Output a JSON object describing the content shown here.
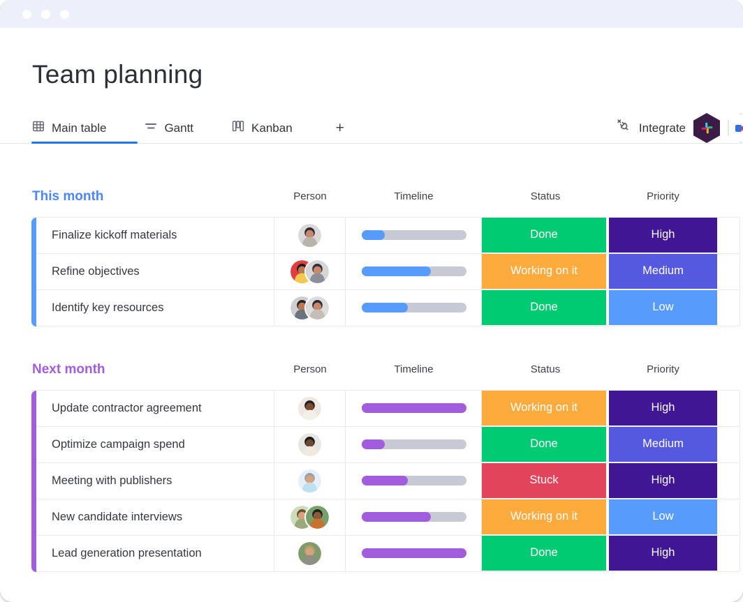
{
  "page": {
    "title": "Team planning"
  },
  "tabs": [
    {
      "label": "Main table",
      "icon": "table-icon",
      "active": true
    },
    {
      "label": "Gantt",
      "icon": "gantt-icon",
      "active": false
    },
    {
      "label": "Kanban",
      "icon": "kanban-icon",
      "active": false
    },
    {
      "label": "+",
      "icon": "plus-icon",
      "active": false
    }
  ],
  "toolbar": {
    "integrate_label": "Integrate",
    "integrate_icon": "plug-icon",
    "app_icons": [
      "slack-icon",
      "partial-app-icon"
    ]
  },
  "columns": [
    "Person",
    "Timeline",
    "Status",
    "Priority"
  ],
  "groups": [
    {
      "name": "This month",
      "title_color": "#4a86f7",
      "color": "#579bfc",
      "rows": [
        {
          "task": "Finalize kickoff materials",
          "timeline_pct": 22,
          "status": "Done",
          "priority": "High",
          "avatars": [
            {
              "bg": "#d9d9d9",
              "hair": "#2f2a33",
              "skin": "#c98a6b",
              "shirt": "#b9b3ad"
            }
          ]
        },
        {
          "task": "Refine objectives",
          "timeline_pct": 66,
          "status": "Working on it",
          "priority": "Medium",
          "avatars": [
            {
              "bg": "#e23e3e",
              "hair": "#1f1b24",
              "skin": "#b97a50",
              "shirt": "#f2c94c"
            },
            {
              "bg": "#d6d6d6",
              "hair": "#33303b",
              "skin": "#c98a6b",
              "shirt": "#8a8f98"
            }
          ]
        },
        {
          "task": "Identify key resources",
          "timeline_pct": 44,
          "status": "Done",
          "priority": "Low",
          "avatars": [
            {
              "bg": "#cfcfcf",
              "hair": "#23212b",
              "skin": "#b97a50",
              "shirt": "#6b7280"
            },
            {
              "bg": "#dcdcdc",
              "hair": "#2f2a33",
              "skin": "#c98a6b",
              "shirt": "#c5beb6"
            }
          ]
        }
      ]
    },
    {
      "name": "Next month",
      "title_color": "#a25ddc",
      "color": "#a25ddc",
      "rows": [
        {
          "task": "Update contractor agreement",
          "timeline_pct": 100,
          "status": "Working on it",
          "priority": "High",
          "avatars": [
            {
              "bg": "#efe7e1",
              "hair": "#241f1e",
              "skin": "#7a4a32",
              "shirt": "#f3efe9"
            }
          ]
        },
        {
          "task": "Optimize campaign spend",
          "timeline_pct": 22,
          "status": "Done",
          "priority": "Medium",
          "avatars": [
            {
              "bg": "#e8e6e2",
              "hair": "#1e1a19",
              "skin": "#6f4630",
              "shirt": "#efe9df"
            }
          ]
        },
        {
          "task": "Meeting with publishers",
          "timeline_pct": 44,
          "status": "Stuck",
          "priority": "High",
          "avatars": [
            {
              "bg": "#e3f0f7",
              "hair": "#9aa0a6",
              "skin": "#d9a27e",
              "shirt": "#bfe0ee"
            }
          ]
        },
        {
          "task": "New candidate interviews",
          "timeline_pct": 66,
          "status": "Working on it",
          "priority": "Low",
          "avatars": [
            {
              "bg": "#cdddb9",
              "hair": "#6b4f35",
              "skin": "#d9a27e",
              "shirt": "#9aa87a"
            },
            {
              "bg": "#77a06a",
              "hair": "#20201f",
              "skin": "#8a5a3b",
              "shirt": "#c9712f"
            }
          ]
        },
        {
          "task": "Lead generation presentation",
          "timeline_pct": 100,
          "status": "Done",
          "priority": "High",
          "avatars": [
            {
              "bg": "#7f9b6e",
              "hair": "#b9a06b",
              "skin": "#d9a27e",
              "shirt": "#8f8f85"
            }
          ]
        }
      ]
    }
  ],
  "colors": {
    "accent_underline": "#1f76f0",
    "topbar": "#edf0fa",
    "timeline_track": "#c7cad4",
    "status": {
      "Done": "#00ca72",
      "Working on it": "#fdab3d",
      "Stuck": "#e2445c"
    },
    "priority": {
      "High": "#401694",
      "Medium": "#5559df",
      "Low": "#579bfc"
    }
  }
}
